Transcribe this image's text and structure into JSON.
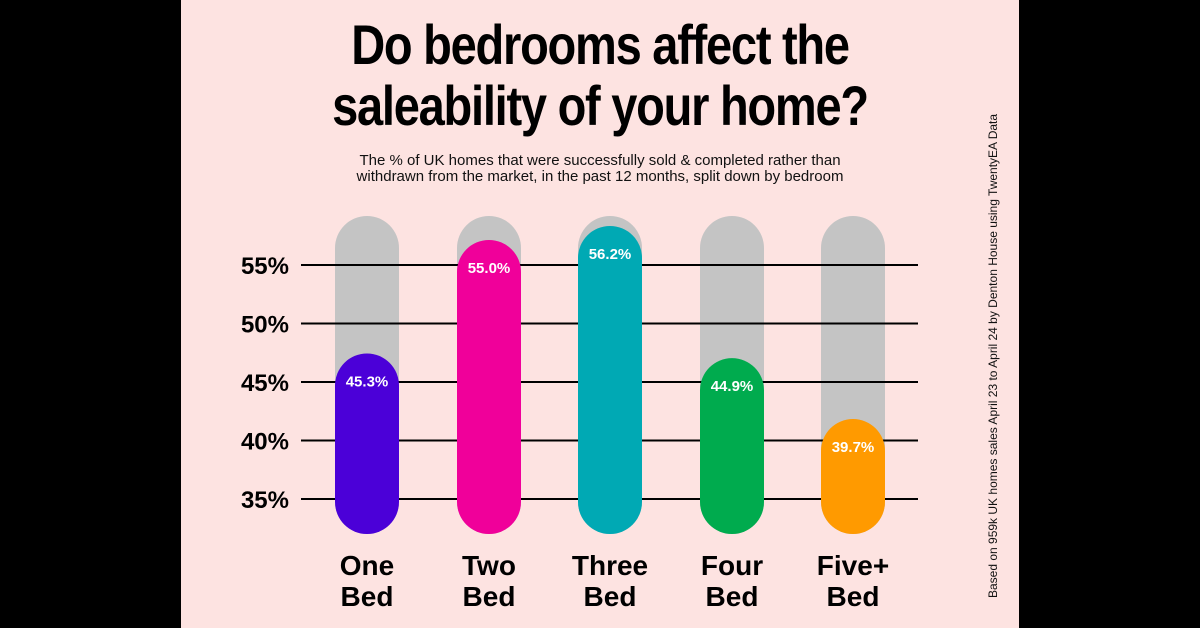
{
  "page": {
    "title_line1": "Do bedrooms affect the",
    "title_line2": "saleability of your home?",
    "subtitle_line1": "The % of UK homes that were successfully sold & completed rather than",
    "subtitle_line2": "withdrawn from the market, in the past 12 months, split down by bedroom",
    "source_note": "Based on 959k UK homes sales April 23 to April 24 by Denton House using TwentyEA Data"
  },
  "chart_data": {
    "type": "bar",
    "title": "Do bedrooms affect the saleability of your home?",
    "subtitle": "The % of UK homes that were successfully sold & completed rather than withdrawn from the market, in the past 12 months, split down by bedroom",
    "categories": [
      [
        "One",
        "Bed"
      ],
      [
        "Two",
        "Bed"
      ],
      [
        "Three",
        "Bed"
      ],
      [
        "Four",
        "Bed"
      ],
      [
        "Five+",
        "Bed"
      ]
    ],
    "values": [
      45.3,
      55.0,
      56.2,
      44.9,
      39.7
    ],
    "value_labels": [
      "45.3%",
      "55.0%",
      "56.2%",
      "44.9%",
      "39.7%"
    ],
    "colors": [
      "#4b00d8",
      "#f0009a",
      "#00a9b4",
      "#00ab4e",
      "#ff9a00"
    ],
    "track_color": "#c4c4c4",
    "yticks": [
      "55%",
      "50%",
      "45%",
      "40%",
      "35%"
    ],
    "ytick_values": [
      55,
      50,
      45,
      40,
      35
    ],
    "grid": true,
    "legend": "none"
  }
}
